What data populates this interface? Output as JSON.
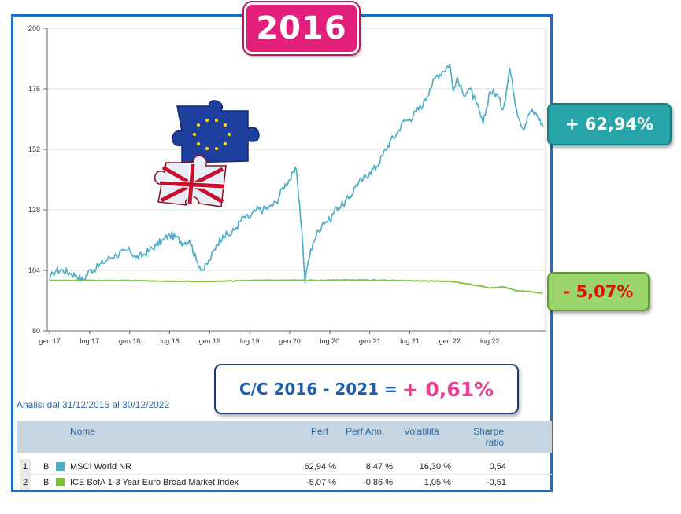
{
  "year_badge": "2016",
  "badges": {
    "msci": "+ 62,94%",
    "ice": "- 5,07%"
  },
  "callout": {
    "label": "C/C 2016 - 2021 =",
    "value": "+ 0,61%"
  },
  "analysis_range": "Analisi dal 31/12/2016 al 30/12/2022",
  "colors": {
    "msci": "#4bacc6",
    "ice": "#7cc23e",
    "frame": "#1a6fc4",
    "accent": "#e21f7a"
  },
  "chart_data": {
    "type": "line",
    "x_ticks": [
      "gen 17",
      "lug 17",
      "gen 18",
      "lug 18",
      "gen 19",
      "lug 19",
      "gen 20",
      "lug 20",
      "gen 21",
      "lug 21",
      "gen 22",
      "lug 22"
    ],
    "y_ticks": [
      "80",
      "104",
      "128",
      "152",
      "176",
      "200"
    ],
    "ylim": [
      80,
      200
    ],
    "grid": true,
    "series": [
      {
        "name": "MSCI World NR",
        "color": "#4bacc6",
        "points": [
          [
            0,
            100
          ],
          [
            0.5,
            103
          ],
          [
            1,
            104
          ],
          [
            2,
            104
          ],
          [
            3,
            103
          ],
          [
            4,
            102
          ],
          [
            5,
            100
          ],
          [
            6,
            104
          ],
          [
            7,
            105
          ],
          [
            8,
            107
          ],
          [
            9,
            109
          ],
          [
            10,
            110
          ],
          [
            12,
            112
          ],
          [
            13,
            109
          ],
          [
            14,
            110
          ],
          [
            15,
            112
          ],
          [
            16,
            114
          ],
          [
            17,
            116
          ],
          [
            18,
            118
          ],
          [
            19,
            117
          ],
          [
            20,
            115
          ],
          [
            21,
            116
          ],
          [
            22,
            108
          ],
          [
            23,
            104
          ],
          [
            24,
            108
          ],
          [
            25,
            114
          ],
          [
            26,
            118
          ],
          [
            27,
            118
          ],
          [
            28,
            121
          ],
          [
            29,
            125
          ],
          [
            30,
            125
          ],
          [
            31,
            128
          ],
          [
            32,
            128
          ],
          [
            33,
            129
          ],
          [
            34,
            131
          ],
          [
            35,
            137
          ],
          [
            36,
            140
          ],
          [
            37,
            144
          ],
          [
            37.8,
            120
          ],
          [
            38.3,
            99
          ],
          [
            38.8,
            108
          ],
          [
            39.5,
            115
          ],
          [
            40,
            118
          ],
          [
            41,
            123
          ],
          [
            42,
            124
          ],
          [
            43,
            129
          ],
          [
            44,
            130
          ],
          [
            45,
            133
          ],
          [
            46,
            138
          ],
          [
            47,
            140
          ],
          [
            48,
            143
          ],
          [
            49,
            145
          ],
          [
            50,
            150
          ],
          [
            51,
            155
          ],
          [
            52,
            158
          ],
          [
            53,
            163
          ],
          [
            54,
            164
          ],
          [
            55,
            167
          ],
          [
            56,
            170
          ],
          [
            57,
            176
          ],
          [
            58,
            181
          ],
          [
            59,
            183
          ],
          [
            60,
            186
          ],
          [
            60.5,
            175
          ],
          [
            61,
            180
          ],
          [
            62,
            174
          ],
          [
            63,
            176
          ],
          [
            64,
            170
          ],
          [
            65,
            162
          ],
          [
            66,
            175
          ],
          [
            67,
            174
          ],
          [
            68,
            168
          ],
          [
            69,
            184
          ],
          [
            70,
            168
          ],
          [
            71,
            160
          ],
          [
            72,
            167
          ],
          [
            73,
            166
          ],
          [
            74,
            161
          ]
        ]
      },
      {
        "name": "ICE BofA 1-3 Year Euro Broad Market Index",
        "color": "#7cc23e",
        "points": [
          [
            0,
            100
          ],
          [
            6,
            100
          ],
          [
            12,
            100
          ],
          [
            18,
            99.7
          ],
          [
            24,
            99.6
          ],
          [
            30,
            100
          ],
          [
            36,
            100.1
          ],
          [
            40,
            100
          ],
          [
            44,
            100.2
          ],
          [
            50,
            100.1
          ],
          [
            56,
            99.8
          ],
          [
            60,
            99.7
          ],
          [
            63,
            98.5
          ],
          [
            66,
            97
          ],
          [
            68,
            97.5
          ],
          [
            70,
            96
          ],
          [
            72,
            95.6
          ],
          [
            74,
            94.9
          ]
        ]
      }
    ]
  },
  "table": {
    "headers": {
      "name": "Nome",
      "perf": "Perf",
      "perf_ann": "Perf Ann.",
      "vol": "Volatilità",
      "sharpe": "Sharpe ratio"
    },
    "rows": [
      {
        "idx": "1",
        "cls": "B",
        "color": "#4bacc6",
        "name": "MSCI World NR",
        "perf": "62,94 %",
        "perf_ann": "8,47 %",
        "vol": "16,30 %",
        "sharpe": "0,54"
      },
      {
        "idx": "2",
        "cls": "B",
        "color": "#7cc23e",
        "name": "ICE BofA 1-3 Year Euro Broad Market Index",
        "perf": "-5,07 %",
        "perf_ann": "-0,86 %",
        "vol": "1,05 %",
        "sharpe": "-0,51"
      }
    ]
  }
}
